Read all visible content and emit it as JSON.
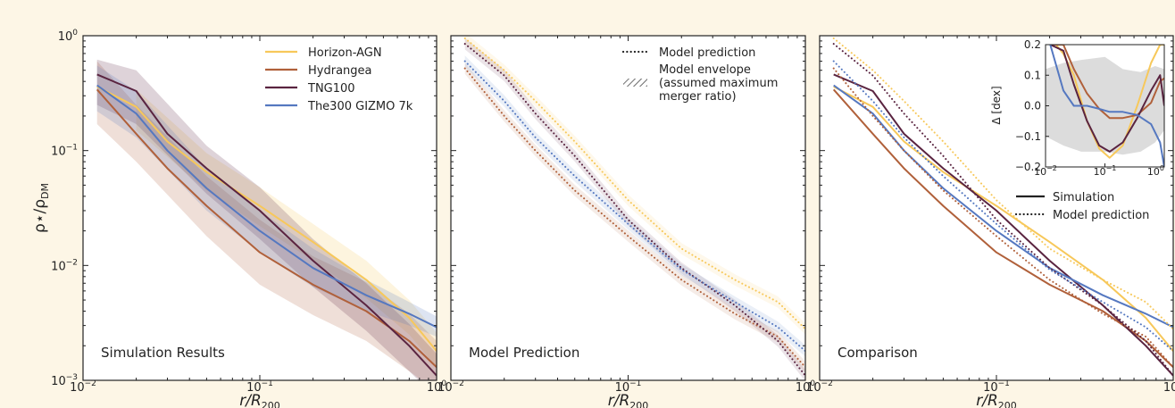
{
  "figure": {
    "y_axis_label": "ρ⋆/ρ",
    "y_axis_label_sub": "DM",
    "y_tick_labels": [
      {
        "base": "10",
        "exp": "0",
        "value": 1
      },
      {
        "base": "10",
        "exp": "−1",
        "value": 0.1
      },
      {
        "base": "10",
        "exp": "−2",
        "value": 0.01
      },
      {
        "base": "10",
        "exp": "−3",
        "value": 0.001
      }
    ],
    "colors": {
      "Horizon-AGN": "#f7c85a",
      "Hydrangea": "#b0603a",
      "TNG100": "#5a2440",
      "The300 GIZMO 7k": "#5578c0",
      "background": "#fdf6e6"
    }
  },
  "chart_data": [
    {
      "type": "line",
      "panel_label": "Simulation Results",
      "xlabel": "r/R",
      "xlabel_sub": "200",
      "x_tick_labels": [
        {
          "base": "10",
          "exp": "−2",
          "value": 0.01
        },
        {
          "base": "10",
          "exp": "−1",
          "value": 0.1
        },
        {
          "base": "10",
          "exp": "0",
          "value": 1
        }
      ],
      "xlim": [
        0.01,
        1
      ],
      "ylim": [
        0.001,
        1
      ],
      "x_scale": "log",
      "y_scale": "log",
      "legend_position": "top-right",
      "legend": [
        {
          "label": "Horizon-AGN",
          "color": "#f7c85a",
          "style": "solid"
        },
        {
          "label": "Hydrangea",
          "color": "#b0603a",
          "style": "solid"
        },
        {
          "label": "TNG100",
          "color": "#5a2440",
          "style": "solid"
        },
        {
          "label": "The300 GIZMO 7k",
          "color": "#5578c0",
          "style": "solid"
        }
      ],
      "series": [
        {
          "name": "Horizon-AGN",
          "color": "#f7c85a",
          "style": "solid",
          "x": [
            0.012,
            0.02,
            0.03,
            0.05,
            0.1,
            0.2,
            0.4,
            0.7,
            1.0
          ],
          "y": [
            0.36,
            0.24,
            0.12,
            0.065,
            0.033,
            0.016,
            0.0075,
            0.0035,
            0.0018
          ]
        },
        {
          "name": "Hydrangea",
          "color": "#b0603a",
          "style": "solid",
          "x": [
            0.012,
            0.02,
            0.03,
            0.05,
            0.1,
            0.2,
            0.4,
            0.7,
            1.0
          ],
          "y": [
            0.34,
            0.14,
            0.07,
            0.033,
            0.013,
            0.0068,
            0.004,
            0.0022,
            0.0013
          ]
        },
        {
          "name": "TNG100",
          "color": "#5a2440",
          "style": "solid",
          "x": [
            0.012,
            0.02,
            0.03,
            0.05,
            0.1,
            0.2,
            0.4,
            0.7,
            1.0
          ],
          "y": [
            0.46,
            0.33,
            0.14,
            0.07,
            0.03,
            0.011,
            0.0045,
            0.002,
            0.0011
          ]
        },
        {
          "name": "The300 GIZMO 7k",
          "color": "#5578c0",
          "style": "solid",
          "x": [
            0.012,
            0.02,
            0.03,
            0.05,
            0.1,
            0.2,
            0.4,
            0.7,
            1.0
          ],
          "y": [
            0.37,
            0.21,
            0.1,
            0.047,
            0.02,
            0.0095,
            0.0055,
            0.0038,
            0.0029
          ]
        }
      ],
      "bands": [
        {
          "name": "Horizon-AGN",
          "color": "#f7c85a",
          "x": [
            0.02,
            0.05,
            0.1,
            0.2,
            0.4,
            0.7,
            1.0
          ],
          "lo": [
            0.15,
            0.045,
            0.022,
            0.011,
            0.0052,
            0.0025,
            0.0013
          ],
          "hi": [
            0.34,
            0.095,
            0.048,
            0.023,
            0.011,
            0.005,
            0.0026
          ]
        },
        {
          "name": "Hydrangea",
          "color": "#b0603a",
          "x": [
            0.012,
            0.02,
            0.05,
            0.1,
            0.2,
            0.4,
            0.7,
            1.0
          ],
          "lo": [
            0.17,
            0.08,
            0.018,
            0.0068,
            0.0037,
            0.0022,
            0.0012,
            0.0008
          ],
          "hi": [
            0.6,
            0.25,
            0.06,
            0.025,
            0.012,
            0.0072,
            0.0038,
            0.0022
          ]
        },
        {
          "name": "TNG100",
          "color": "#5a2440",
          "x": [
            0.012,
            0.02,
            0.05,
            0.1,
            0.2,
            0.4,
            0.7,
            1.0
          ],
          "lo": [
            0.25,
            0.17,
            0.042,
            0.017,
            0.0065,
            0.0027,
            0.0012,
            0.0007
          ],
          "hi": [
            0.62,
            0.5,
            0.11,
            0.048,
            0.017,
            0.007,
            0.0031,
            0.0017
          ]
        },
        {
          "name": "The300 GIZMO 7k",
          "color": "#5578c0",
          "x": [
            0.012,
            0.02,
            0.05,
            0.1,
            0.2,
            0.4,
            0.7,
            1.0
          ],
          "lo": [
            0.22,
            0.13,
            0.03,
            0.013,
            0.0065,
            0.004,
            0.003,
            0.0024
          ],
          "hi": [
            0.55,
            0.33,
            0.07,
            0.03,
            0.014,
            0.0075,
            0.0048,
            0.0036
          ]
        }
      ]
    },
    {
      "type": "line",
      "panel_label": "Model Prediction",
      "xlabel": "r/R",
      "xlabel_sub": "200",
      "x_tick_labels": [
        {
          "base": "10",
          "exp": "−2",
          "value": 0.01
        },
        {
          "base": "10",
          "exp": "−1",
          "value": 0.1
        },
        {
          "base": "10",
          "exp": "0",
          "value": 1
        }
      ],
      "xlim": [
        0.01,
        1
      ],
      "ylim": [
        0.001,
        1
      ],
      "x_scale": "log",
      "y_scale": "log",
      "legend_position": "top-right",
      "legend": [
        {
          "label": "Model prediction",
          "style": "dotted",
          "color": "#222222"
        },
        {
          "label_lines": [
            "Model envelope",
            "(assumed maximum",
            "merger ratio)"
          ],
          "style": "hatched",
          "color": "#222222"
        }
      ],
      "series": [
        {
          "name": "Horizon-AGN",
          "color": "#f7c85a",
          "style": "dotted",
          "x": [
            0.012,
            0.02,
            0.03,
            0.05,
            0.1,
            0.2,
            0.4,
            0.7,
            1.0
          ],
          "y": [
            0.95,
            0.5,
            0.27,
            0.12,
            0.037,
            0.014,
            0.0075,
            0.0048,
            0.0028
          ]
        },
        {
          "name": "Hydrangea",
          "color": "#b0603a",
          "style": "dotted",
          "x": [
            0.012,
            0.02,
            0.03,
            0.05,
            0.1,
            0.2,
            0.4,
            0.7,
            1.0
          ],
          "y": [
            0.52,
            0.2,
            0.1,
            0.045,
            0.018,
            0.0075,
            0.0038,
            0.0024,
            0.0013
          ]
        },
        {
          "name": "TNG100",
          "color": "#5a2440",
          "style": "dotted",
          "x": [
            0.012,
            0.02,
            0.03,
            0.05,
            0.1,
            0.2,
            0.4,
            0.7,
            1.0
          ],
          "y": [
            0.85,
            0.45,
            0.21,
            0.09,
            0.025,
            0.0095,
            0.0045,
            0.0022,
            0.0011
          ]
        },
        {
          "name": "The300 GIZMO 7k",
          "color": "#5578c0",
          "style": "dotted",
          "x": [
            0.012,
            0.02,
            0.03,
            0.05,
            0.1,
            0.2,
            0.4,
            0.7,
            1.0
          ],
          "y": [
            0.6,
            0.27,
            0.13,
            0.06,
            0.023,
            0.0092,
            0.0048,
            0.0029,
            0.0018
          ]
        }
      ]
    },
    {
      "type": "line",
      "panel_label": "Comparison",
      "xlabel": "r/R",
      "xlabel_sub": "200",
      "x_tick_labels": [
        {
          "base": "10",
          "exp": "−2",
          "value": 0.01
        },
        {
          "base": "10",
          "exp": "−1",
          "value": 0.1
        },
        {
          "base": "10",
          "exp": "0",
          "value": 1
        }
      ],
      "xlim": [
        0.01,
        1
      ],
      "ylim": [
        0.001,
        1
      ],
      "x_scale": "log",
      "y_scale": "log",
      "legend_position": "right",
      "legend": [
        {
          "label": "Simulation",
          "style": "solid",
          "color": "#222222"
        },
        {
          "label": "Model prediction",
          "style": "dotted",
          "color": "#222222"
        }
      ],
      "series": [
        {
          "name": "Horizon-AGN",
          "color": "#f7c85a",
          "style": "solid",
          "x": [
            0.012,
            0.02,
            0.03,
            0.05,
            0.1,
            0.2,
            0.4,
            0.7,
            1.0
          ],
          "y": [
            0.36,
            0.24,
            0.12,
            0.065,
            0.033,
            0.016,
            0.0075,
            0.0035,
            0.0018
          ]
        },
        {
          "name": "Hydrangea",
          "color": "#b0603a",
          "style": "solid",
          "x": [
            0.012,
            0.02,
            0.03,
            0.05,
            0.1,
            0.2,
            0.4,
            0.7,
            1.0
          ],
          "y": [
            0.34,
            0.14,
            0.07,
            0.033,
            0.013,
            0.0068,
            0.004,
            0.0022,
            0.0013
          ]
        },
        {
          "name": "TNG100",
          "color": "#5a2440",
          "style": "solid",
          "x": [
            0.012,
            0.02,
            0.03,
            0.05,
            0.1,
            0.2,
            0.4,
            0.7,
            1.0
          ],
          "y": [
            0.46,
            0.33,
            0.14,
            0.07,
            0.03,
            0.011,
            0.0045,
            0.002,
            0.0011
          ]
        },
        {
          "name": "The300 GIZMO 7k",
          "color": "#5578c0",
          "style": "solid",
          "x": [
            0.012,
            0.02,
            0.03,
            0.05,
            0.1,
            0.2,
            0.4,
            0.7,
            1.0
          ],
          "y": [
            0.37,
            0.21,
            0.1,
            0.047,
            0.02,
            0.0095,
            0.0055,
            0.0038,
            0.0029
          ]
        },
        {
          "name": "Horizon-AGN",
          "color": "#f7c85a",
          "style": "dotted",
          "x": [
            0.012,
            0.02,
            0.03,
            0.05,
            0.1,
            0.2,
            0.4,
            0.7,
            1.0
          ],
          "y": [
            0.95,
            0.5,
            0.27,
            0.12,
            0.037,
            0.014,
            0.0075,
            0.0048,
            0.0028
          ]
        },
        {
          "name": "Hydrangea",
          "color": "#b0603a",
          "style": "dotted",
          "x": [
            0.012,
            0.02,
            0.03,
            0.05,
            0.1,
            0.2,
            0.4,
            0.7,
            1.0
          ],
          "y": [
            0.52,
            0.2,
            0.1,
            0.045,
            0.018,
            0.0075,
            0.0038,
            0.0024,
            0.0013
          ]
        },
        {
          "name": "TNG100",
          "color": "#5a2440",
          "style": "dotted",
          "x": [
            0.012,
            0.02,
            0.03,
            0.05,
            0.1,
            0.2,
            0.4,
            0.7,
            1.0
          ],
          "y": [
            0.85,
            0.45,
            0.21,
            0.09,
            0.025,
            0.0095,
            0.0045,
            0.0022,
            0.0011
          ]
        },
        {
          "name": "The300 GIZMO 7k",
          "color": "#5578c0",
          "style": "dotted",
          "x": [
            0.012,
            0.02,
            0.03,
            0.05,
            0.1,
            0.2,
            0.4,
            0.7,
            1.0
          ],
          "y": [
            0.6,
            0.27,
            0.13,
            0.06,
            0.023,
            0.0092,
            0.0048,
            0.0029,
            0.0018
          ]
        }
      ],
      "inset": {
        "type": "line",
        "ylabel": "Δ [dex]",
        "x_scale": "log",
        "xlim": [
          0.01,
          1
        ],
        "ylim": [
          -0.2,
          0.2
        ],
        "x_tick_labels": [
          {
            "base": "10",
            "exp": "−2",
            "value": 0.01
          },
          {
            "base": "10",
            "exp": "−1",
            "value": 0.1
          },
          {
            "base": "10",
            "exp": "0",
            "value": 1
          }
        ],
        "y_tick_labels": [
          {
            "text": "0.2",
            "value": 0.2
          },
          {
            "text": "0.1",
            "value": 0.1
          },
          {
            "text": "0.0",
            "value": 0.0
          },
          {
            "text": "−0.1",
            "value": -0.1
          },
          {
            "text": "−0.2",
            "value": -0.2
          }
        ],
        "band": {
          "color": "#d0d0d0",
          "x": [
            0.01,
            0.02,
            0.04,
            0.1,
            0.2,
            0.4,
            0.7,
            1.0
          ],
          "lo": [
            -0.1,
            -0.13,
            -0.15,
            -0.15,
            -0.16,
            -0.15,
            -0.12,
            -0.08
          ],
          "hi": [
            0.12,
            0.14,
            0.15,
            0.16,
            0.12,
            0.11,
            0.13,
            0.12
          ]
        },
        "series": [
          {
            "name": "Horizon-AGN",
            "color": "#f7c85a",
            "x": [
              0.012,
              0.015,
              0.02,
              0.03,
              0.05,
              0.08,
              0.12,
              0.2,
              0.35,
              0.6,
              0.85,
              1.0
            ],
            "y": [
              0.2,
              0.2,
              0.17,
              0.1,
              -0.05,
              -0.14,
              -0.17,
              -0.13,
              0.0,
              0.14,
              0.2,
              0.2
            ]
          },
          {
            "name": "Hydrangea",
            "color": "#b0603a",
            "x": [
              0.012,
              0.02,
              0.03,
              0.05,
              0.08,
              0.12,
              0.2,
              0.35,
              0.6,
              0.85,
              1.0
            ],
            "y": [
              0.2,
              0.2,
              0.12,
              0.04,
              -0.01,
              -0.04,
              -0.04,
              -0.03,
              0.01,
              0.08,
              0.09
            ]
          },
          {
            "name": "TNG100",
            "color": "#5a2440",
            "x": [
              0.012,
              0.02,
              0.03,
              0.05,
              0.08,
              0.12,
              0.2,
              0.35,
              0.6,
              0.85,
              1.0
            ],
            "y": [
              0.2,
              0.18,
              0.07,
              -0.05,
              -0.13,
              -0.15,
              -0.12,
              -0.04,
              0.05,
              0.1,
              0.0
            ]
          },
          {
            "name": "The300 GIZMO 7k",
            "color": "#5578c0",
            "x": [
              0.012,
              0.02,
              0.03,
              0.05,
              0.08,
              0.12,
              0.2,
              0.35,
              0.6,
              0.85,
              1.0
            ],
            "y": [
              0.2,
              0.05,
              0.0,
              0.0,
              -0.01,
              -0.02,
              -0.02,
              -0.03,
              -0.06,
              -0.12,
              -0.2
            ]
          }
        ]
      }
    }
  ]
}
